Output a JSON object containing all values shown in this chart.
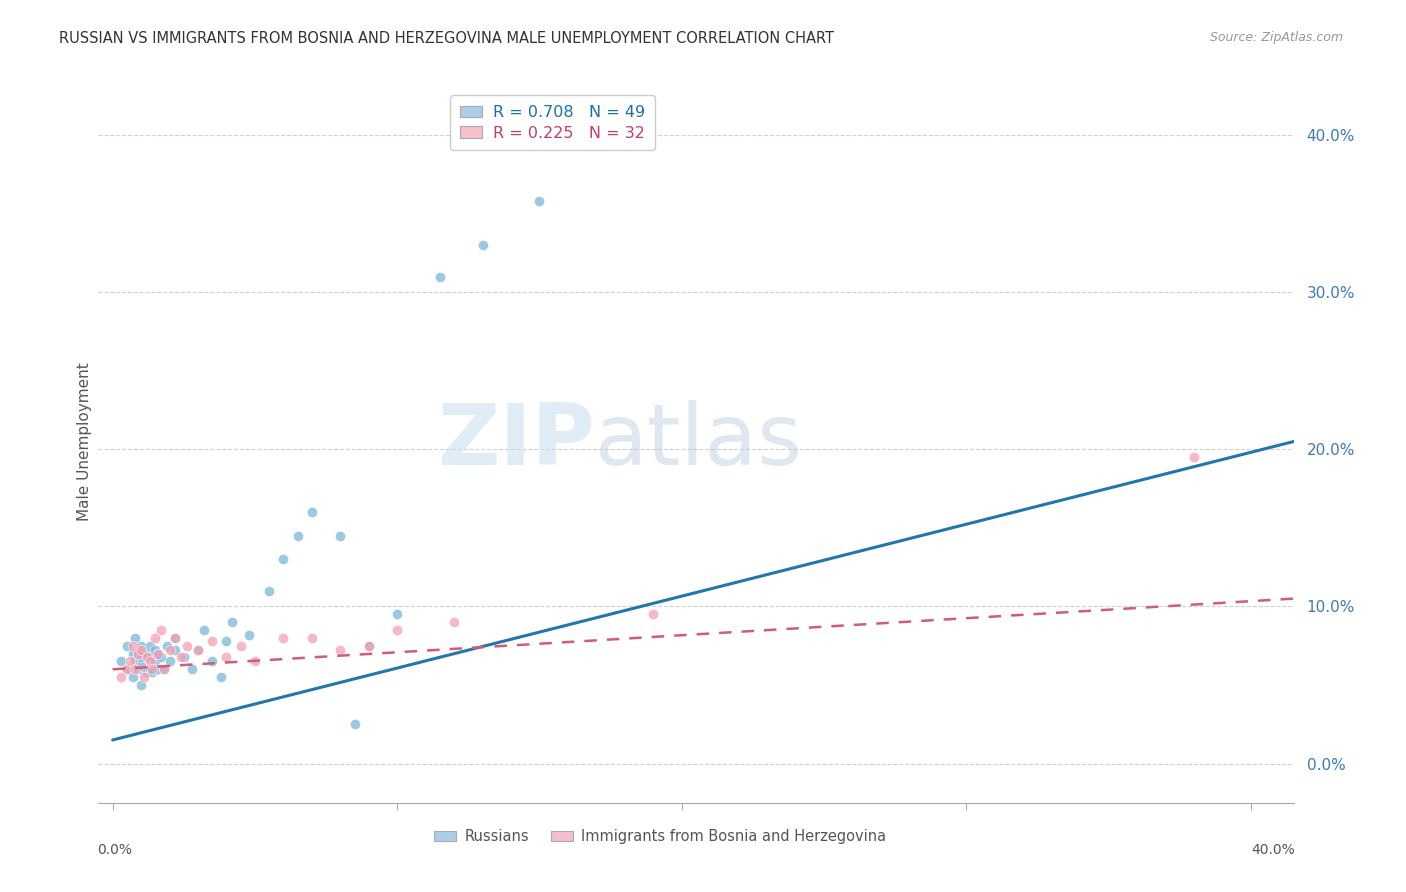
{
  "title": "RUSSIAN VS IMMIGRANTS FROM BOSNIA AND HERZEGOVINA MALE UNEMPLOYMENT CORRELATION CHART",
  "source": "Source: ZipAtlas.com",
  "ylabel": "Male Unemployment",
  "ytick_labels": [
    "0.0%",
    "10.0%",
    "20.0%",
    "30.0%",
    "40.0%"
  ],
  "ytick_values": [
    0.0,
    0.1,
    0.2,
    0.3,
    0.4
  ],
  "xlim": [
    -0.005,
    0.415
  ],
  "ylim": [
    -0.025,
    0.435
  ],
  "legend_label1": "R = 0.708   N = 49",
  "legend_label2": "R = 0.225   N = 32",
  "watermark_zip": "ZIP",
  "watermark_atlas": "atlas",
  "blue_scatter_color": "#7ab8d9",
  "pink_scatter_color": "#f4a0b0",
  "blue_line_color": "#2176ae",
  "pink_line_color": "#d45a7a",
  "grid_color": "#cccccc",
  "background_color": "#ffffff",
  "legend_entry1_color": "#aecde8",
  "legend_entry2_color": "#f5c0cc",
  "russians_x": [
    0.003,
    0.005,
    0.005,
    0.007,
    0.007,
    0.008,
    0.008,
    0.009,
    0.009,
    0.01,
    0.01,
    0.01,
    0.01,
    0.012,
    0.012,
    0.013,
    0.013,
    0.014,
    0.014,
    0.015,
    0.015,
    0.016,
    0.016,
    0.017,
    0.018,
    0.019,
    0.02,
    0.022,
    0.022,
    0.025,
    0.028,
    0.03,
    0.032,
    0.035,
    0.038,
    0.04,
    0.042,
    0.048,
    0.055,
    0.06,
    0.065,
    0.07,
    0.08,
    0.085,
    0.09,
    0.1,
    0.115,
    0.13,
    0.15
  ],
  "russians_y": [
    0.065,
    0.06,
    0.075,
    0.055,
    0.07,
    0.065,
    0.08,
    0.06,
    0.07,
    0.05,
    0.062,
    0.068,
    0.075,
    0.058,
    0.07,
    0.06,
    0.075,
    0.058,
    0.068,
    0.065,
    0.072,
    0.06,
    0.07,
    0.068,
    0.06,
    0.075,
    0.065,
    0.072,
    0.08,
    0.068,
    0.06,
    0.072,
    0.085,
    0.065,
    0.055,
    0.078,
    0.09,
    0.082,
    0.11,
    0.13,
    0.145,
    0.16,
    0.145,
    0.025,
    0.075,
    0.095,
    0.31,
    0.33,
    0.358
  ],
  "bosnian_x": [
    0.003,
    0.005,
    0.006,
    0.007,
    0.008,
    0.009,
    0.01,
    0.011,
    0.012,
    0.013,
    0.014,
    0.015,
    0.016,
    0.017,
    0.018,
    0.02,
    0.022,
    0.024,
    0.026,
    0.03,
    0.035,
    0.04,
    0.045,
    0.05,
    0.06,
    0.07,
    0.08,
    0.09,
    0.1,
    0.12,
    0.19,
    0.38
  ],
  "bosnian_y": [
    0.055,
    0.06,
    0.065,
    0.075,
    0.06,
    0.07,
    0.072,
    0.055,
    0.068,
    0.065,
    0.06,
    0.08,
    0.07,
    0.085,
    0.06,
    0.072,
    0.08,
    0.068,
    0.075,
    0.072,
    0.078,
    0.068,
    0.075,
    0.065,
    0.08,
    0.08,
    0.072,
    0.075,
    0.085,
    0.09,
    0.095,
    0.195
  ],
  "blue_trend_x": [
    0.0,
    0.415
  ],
  "blue_trend_y": [
    0.015,
    0.205
  ],
  "pink_trend_x": [
    0.0,
    0.415
  ],
  "pink_trend_y": [
    0.06,
    0.105
  ],
  "bottom_legend_russians": "Russians",
  "bottom_legend_bosnian": "Immigrants from Bosnia and Herzegovina",
  "xtick_positions": [
    0.0,
    0.1,
    0.2,
    0.3,
    0.4
  ],
  "xtick_labels_bottom_left": "0.0%",
  "xtick_labels_bottom_right": "40.0%"
}
